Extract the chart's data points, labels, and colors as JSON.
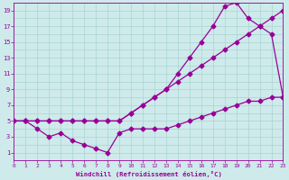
{
  "xlabel": "Windchill (Refroidissement éolien,°C)",
  "bg_color": "#ceeaea",
  "line_color": "#990099",
  "grid_color": "#aad4d4",
  "line1_x": [
    0,
    1,
    2,
    3,
    4,
    5,
    6,
    7,
    8,
    9,
    10,
    11,
    12,
    13,
    14,
    15,
    16,
    17,
    18,
    19,
    20,
    21,
    22,
    23
  ],
  "line1_y": [
    5,
    5,
    5,
    5,
    5,
    5,
    5,
    5,
    5,
    5,
    6,
    7,
    8,
    9,
    10,
    11,
    12,
    13,
    14,
    15,
    16,
    17,
    18,
    19
  ],
  "line2_x": [
    0,
    1,
    2,
    3,
    4,
    5,
    6,
    7,
    8,
    9,
    10,
    11,
    12,
    13,
    14,
    15,
    16,
    17,
    18,
    19,
    20,
    21,
    22,
    23
  ],
  "line2_y": [
    5,
    5,
    5,
    5,
    5,
    5,
    5,
    5,
    5,
    5,
    6,
    7,
    8,
    9,
    11,
    13,
    15,
    17,
    19.5,
    20,
    18,
    17,
    16,
    8
  ],
  "line3_x": [
    0,
    1,
    2,
    3,
    4,
    5,
    6,
    7,
    8,
    9,
    10,
    11,
    12,
    13,
    14,
    15,
    16,
    17,
    18,
    19,
    20,
    21,
    22,
    23
  ],
  "line3_y": [
    5,
    5,
    4,
    3,
    3.5,
    2.5,
    2,
    1.5,
    1,
    3.5,
    4,
    4,
    4,
    4,
    4.5,
    5,
    5.5,
    6,
    6.5,
    7,
    7.5,
    7.5,
    8,
    8
  ],
  "xlim": [
    0,
    23
  ],
  "ylim": [
    0,
    20
  ],
  "xticks": [
    0,
    1,
    2,
    3,
    4,
    5,
    6,
    7,
    8,
    9,
    10,
    11,
    12,
    13,
    14,
    15,
    16,
    17,
    18,
    19,
    20,
    21,
    22,
    23
  ],
  "yticks": [
    1,
    3,
    5,
    7,
    9,
    11,
    13,
    15,
    17,
    19
  ]
}
